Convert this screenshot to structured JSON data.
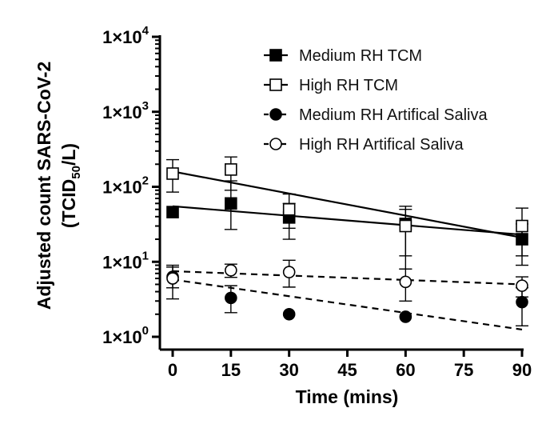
{
  "chart_data": {
    "type": "scatter",
    "xlabel": "Time (mins)",
    "ylabel_line1": "Adjusted count SARS-CoV-2",
    "ylabel_line2_prefix": "(TCID",
    "ylabel_line2_sub": "50",
    "ylabel_line2_suffix": "/L)",
    "y_scale": "log",
    "xlim": [
      0,
      90
    ],
    "ylim": [
      1,
      10000
    ],
    "x_ticks": [
      "0",
      "15",
      "30",
      "45",
      "60",
      "75",
      "90"
    ],
    "x_tick_values": [
      0,
      15,
      30,
      45,
      60,
      75,
      90
    ],
    "y_ticks": [
      {
        "value": 1,
        "base": "1×10",
        "exp": "0"
      },
      {
        "value": 10,
        "base": "1×10",
        "exp": "1"
      },
      {
        "value": 100,
        "base": "1×10",
        "exp": "2"
      },
      {
        "value": 1000,
        "base": "1×10",
        "exp": "3"
      },
      {
        "value": 10000,
        "base": "1×10",
        "exp": "4"
      }
    ],
    "legend_position": "top-right",
    "series": [
      {
        "name": "Medium RH TCM",
        "marker": "square",
        "filled": true,
        "line_style": "solid",
        "x": [
          0,
          15,
          30,
          60,
          90
        ],
        "y": [
          46,
          60,
          39,
          32,
          20
        ],
        "err_low": [
          46,
          27,
          20,
          12,
          9
        ],
        "err_high": [
          46,
          120,
          60,
          55,
          32
        ],
        "fit": {
          "x": [
            0,
            90
          ],
          "y": [
            55,
            23
          ]
        }
      },
      {
        "name": "High RH TCM",
        "marker": "square",
        "filled": false,
        "line_style": "solid",
        "x": [
          0,
          15,
          30,
          60,
          90
        ],
        "y": [
          150,
          170,
          50,
          30,
          30
        ],
        "err_low": [
          85,
          90,
          28,
          8,
          12
        ],
        "err_high": [
          230,
          250,
          80,
          50,
          52
        ],
        "fit": {
          "x": [
            0,
            90
          ],
          "y": [
            160,
            21
          ]
        }
      },
      {
        "name": "Medium RH Artifical Saliva",
        "marker": "circle",
        "filled": true,
        "line_style": "dashed",
        "x": [
          0,
          15,
          30,
          60,
          90
        ],
        "y": [
          6.3,
          3.3,
          2.0,
          1.85,
          2.9
        ],
        "err_low": [
          4.5,
          2.1,
          2.0,
          1.85,
          1.4
        ],
        "err_high": [
          8.5,
          4.8,
          2.0,
          1.85,
          4.5
        ],
        "fit": {
          "x": [
            0,
            90
          ],
          "y": [
            5.8,
            1.25
          ]
        }
      },
      {
        "name": "High RH Artifical Saliva",
        "marker": "circle",
        "filled": false,
        "line_style": "dashed",
        "x": [
          0,
          15,
          30,
          60,
          90
        ],
        "y": [
          6.0,
          7.7,
          7.3,
          5.4,
          4.8
        ],
        "err_low": [
          3.2,
          6.2,
          4.6,
          3.0,
          3.4
        ],
        "err_high": [
          9.0,
          9.3,
          10.5,
          8.0,
          6.3
        ],
        "fit": {
          "x": [
            0,
            90
          ],
          "y": [
            7.5,
            5.0
          ]
        }
      }
    ]
  }
}
